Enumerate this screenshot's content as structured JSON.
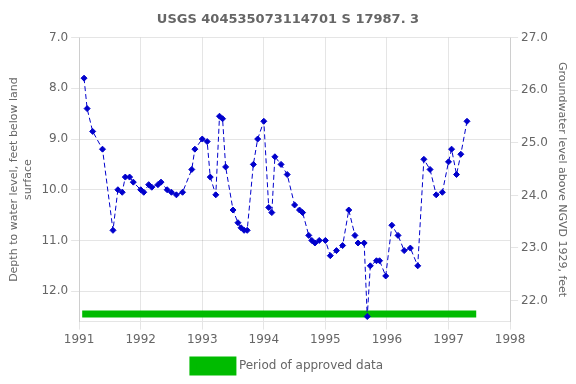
{
  "chart_data": {
    "type": "line",
    "title": "USGS 404535073114701 S 17987. 3",
    "y_label": "Depth to water level, feet below land\nsurface",
    "y2_label": "Groundwater level above NGVD 1929, feet",
    "xlim": [
      1991.0,
      1998.0
    ],
    "xticks": [
      1991,
      1992,
      1993,
      1994,
      1995,
      1996,
      1997,
      1998
    ],
    "ylim": [
      12.6,
      7.0
    ],
    "yticks": [
      {
        "value": 7.0,
        "label": "7.0"
      },
      {
        "value": 8.0,
        "label": "8.0"
      },
      {
        "value": 9.0,
        "label": "9.0"
      },
      {
        "value": 10.0,
        "label": "10.0"
      },
      {
        "value": 11.0,
        "label": "11.0"
      },
      {
        "value": 12.0,
        "label": "12.0"
      }
    ],
    "y2lim": [
      21.6,
      27.0
    ],
    "y2ticks": [
      {
        "value": 27.0,
        "label": "27.0"
      },
      {
        "value": 26.0,
        "label": "26.0"
      },
      {
        "value": 25.0,
        "label": "25.0"
      },
      {
        "value": 24.0,
        "label": "24.0"
      },
      {
        "value": 23.0,
        "label": "23.0"
      },
      {
        "value": 22.0,
        "label": "22.0"
      }
    ],
    "grid": true,
    "legend": "bottom",
    "series": [
      {
        "color": "#0000cc",
        "marker": "diamond",
        "line_style": "dashed",
        "x": [
          1991.08,
          1991.13,
          1991.22,
          1991.38,
          1991.55,
          1991.63,
          1991.7,
          1991.75,
          1991.82,
          1991.88,
          1992.0,
          1992.05,
          1992.13,
          1992.18,
          1992.28,
          1992.33,
          1992.43,
          1992.5,
          1992.58,
          1992.68,
          1992.83,
          1992.88,
          1993.0,
          1993.08,
          1993.13,
          1993.22,
          1993.28,
          1993.33,
          1993.38,
          1993.5,
          1993.58,
          1993.63,
          1993.68,
          1993.73,
          1993.83,
          1993.9,
          1994.0,
          1994.08,
          1994.13,
          1994.18,
          1994.28,
          1994.38,
          1994.5,
          1994.58,
          1994.63,
          1994.73,
          1994.78,
          1994.83,
          1994.9,
          1995.0,
          1995.08,
          1995.18,
          1995.28,
          1995.38,
          1995.48,
          1995.53,
          1995.63,
          1995.68,
          1995.73,
          1995.83,
          1995.88,
          1995.98,
          1996.08,
          1996.18,
          1996.28,
          1996.38,
          1996.5,
          1996.6,
          1996.7,
          1996.8,
          1996.9,
          1997.0,
          1997.05,
          1997.13,
          1997.2,
          1997.3
        ],
        "values": [
          7.8,
          8.4,
          8.85,
          9.2,
          10.8,
          10.0,
          10.05,
          9.75,
          9.75,
          9.85,
          10.0,
          10.05,
          9.9,
          9.95,
          9.9,
          9.85,
          10.0,
          10.05,
          10.1,
          10.05,
          9.6,
          9.2,
          9.0,
          9.05,
          9.75,
          10.1,
          8.55,
          8.6,
          9.55,
          10.4,
          10.65,
          10.75,
          10.8,
          10.8,
          9.5,
          9.0,
          8.65,
          10.35,
          10.45,
          9.35,
          9.5,
          9.7,
          10.3,
          10.4,
          10.45,
          10.9,
          11.0,
          11.05,
          11.0,
          11.0,
          11.3,
          11.2,
          11.1,
          10.4,
          10.9,
          11.05,
          11.05,
          12.5,
          11.5,
          11.4,
          11.4,
          11.7,
          10.7,
          10.9,
          11.2,
          11.15,
          11.5,
          9.4,
          9.6,
          10.1,
          10.05,
          9.45,
          9.2,
          9.7,
          9.3,
          8.65
        ]
      },
      {
        "name": "Period of approved data",
        "color": "#00bb00",
        "x": [
          1991.05,
          1997.45
        ],
        "values": [
          12.45,
          12.45
        ]
      }
    ]
  }
}
